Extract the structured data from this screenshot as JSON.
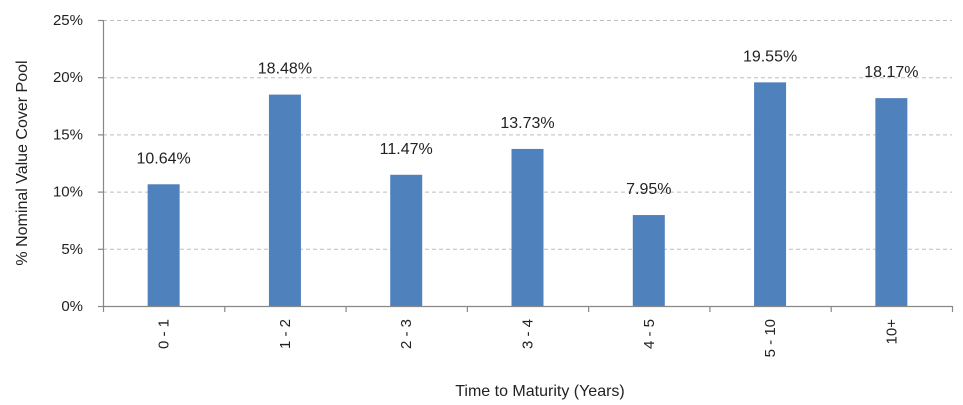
{
  "chart_data": {
    "type": "bar",
    "categories": [
      "0 - 1",
      "1 - 2",
      "2 - 3",
      "3 - 4",
      "4 - 5",
      "5 - 10",
      "10+"
    ],
    "values": [
      10.64,
      18.48,
      11.47,
      13.73,
      7.95,
      19.55,
      18.17
    ],
    "data_labels": [
      "10.64%",
      "18.48%",
      "11.47%",
      "13.73%",
      "7.95%",
      "19.55%",
      "18.17%"
    ],
    "title": "",
    "xlabel": "Time to Maturity (Years)",
    "ylabel": "% Nominal Value Cover Pool",
    "ylim": [
      0,
      25
    ],
    "yticks": [
      0,
      5,
      10,
      15,
      20,
      25
    ],
    "ytick_labels": [
      "0%",
      "5%",
      "10%",
      "15%",
      "20%",
      "25%"
    ],
    "grid": true,
    "legend": false,
    "bar_color": "#4f81bd"
  }
}
